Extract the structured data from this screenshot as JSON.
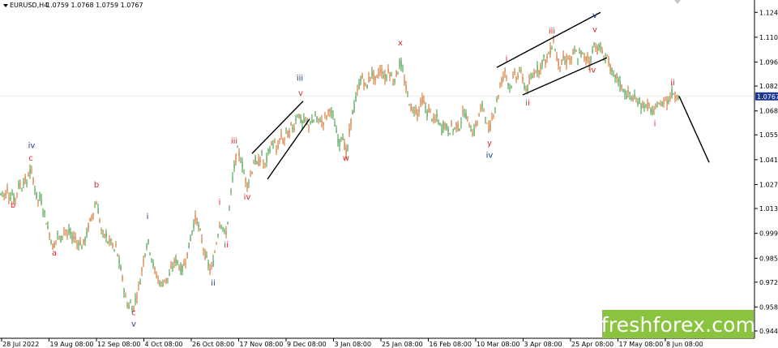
{
  "header": {
    "symbol": "EURUSD,H4",
    "ohlc": "1.0759 1.0768 1.0759 1.0767"
  },
  "brand": {
    "text": "freshforex.com",
    "bg_color": "#8ac43f"
  },
  "colors": {
    "up": "#3a9a3a",
    "down": "#d2691e",
    "label_red": "#d62728",
    "label_blue": "#1f3a93",
    "line": "#000000",
    "price_tag_bg": "#1f3a93",
    "bid_line": "#e8e8e8"
  },
  "chart_data": {
    "type": "candlestick",
    "symbol": "EURUSD",
    "timeframe": "H4",
    "ylim": [
      0.9445,
      1.1255
    ],
    "y_ticks": [
      "1.1240",
      "1.1100",
      "1.0960",
      "1.0825",
      "1.0685",
      "1.0550",
      "1.0410",
      "1.0270",
      "1.0135",
      "0.9995",
      "0.9855",
      "0.9720",
      "0.9580",
      "0.9445"
    ],
    "current_price": "1.0767",
    "x_ticks": [
      "28 Jul 2022",
      "19 Aug 08:00",
      "12 Sep 08:00",
      "4 Oct 08:00",
      "26 Oct 08:00",
      "17 Nov 08:00",
      "9 Dec 08:00",
      "3 Jan 08:00",
      "25 Jan 08:00",
      "16 Feb 08:00",
      "10 Mar 08:00",
      "3 Apr 08:00",
      "25 Apr 08:00",
      "17 May 08:00",
      "8 Jun 08:00"
    ],
    "price_path": [
      [
        0,
        1.021
      ],
      [
        3,
        1.023
      ],
      [
        6,
        1.02
      ],
      [
        9,
        1.025
      ],
      [
        12,
        1.019
      ],
      [
        15,
        1.022
      ],
      [
        18,
        1.017
      ],
      [
        21,
        1.023
      ],
      [
        24,
        1.028
      ],
      [
        27,
        1.025
      ],
      [
        30,
        1.031
      ],
      [
        33,
        1.027
      ],
      [
        35,
        1.033
      ],
      [
        38,
        1.035
      ],
      [
        41,
        1.03
      ],
      [
        44,
        1.022
      ],
      [
        47,
        1.018
      ],
      [
        50,
        1.02
      ],
      [
        53,
        1.013
      ],
      [
        56,
        1.009
      ],
      [
        59,
        1.002
      ],
      [
        62,
        0.998
      ],
      [
        65,
        0.992
      ],
      [
        68,
        0.994
      ],
      [
        71,
        0.999
      ],
      [
        74,
        0.995
      ],
      [
        77,
        0.999
      ],
      [
        80,
        1.003
      ],
      [
        83,
        0.998
      ],
      [
        86,
        1.001
      ],
      [
        89,
        0.996
      ],
      [
        92,
        0.999
      ],
      [
        95,
        0.993
      ],
      [
        98,
        0.996
      ],
      [
        101,
        0.992
      ],
      [
        104,
        0.995
      ],
      [
        107,
        0.999
      ],
      [
        110,
        1.005
      ],
      [
        113,
        1.009
      ],
      [
        116,
        1.013
      ],
      [
        119,
        1.017
      ],
      [
        122,
        1.01
      ],
      [
        125,
        1.001
      ],
      [
        128,
        0.997
      ],
      [
        131,
        0.999
      ],
      [
        134,
        0.993
      ],
      [
        137,
        0.996
      ],
      [
        140,
        0.989
      ],
      [
        143,
        0.992
      ],
      [
        146,
        0.985
      ],
      [
        149,
        0.979
      ],
      [
        152,
        0.971
      ],
      [
        155,
        0.963
      ],
      [
        158,
        0.958
      ],
      [
        161,
        0.96
      ],
      [
        164,
        0.956
      ],
      [
        167,
        0.962
      ],
      [
        170,
        0.967
      ],
      [
        173,
        0.973
      ],
      [
        176,
        0.982
      ],
      [
        179,
        0.989
      ],
      [
        182,
        0.996
      ],
      [
        185,
        0.99
      ],
      [
        188,
        0.984
      ],
      [
        191,
        0.978
      ],
      [
        194,
        0.975
      ],
      [
        197,
        0.972
      ],
      [
        200,
        0.97
      ],
      [
        203,
        0.974
      ],
      [
        206,
        0.973
      ],
      [
        209,
        0.976
      ],
      [
        212,
        0.98
      ],
      [
        215,
        0.983
      ],
      [
        218,
        0.985
      ],
      [
        221,
        0.981
      ],
      [
        224,
        0.978
      ],
      [
        227,
        0.982
      ],
      [
        230,
        0.986
      ],
      [
        233,
        0.992
      ],
      [
        236,
        0.999
      ],
      [
        239,
        1.005
      ],
      [
        242,
        1.009
      ],
      [
        245,
        1.003
      ],
      [
        248,
        0.998
      ],
      [
        251,
        0.991
      ],
      [
        254,
        0.986
      ],
      [
        257,
        0.982
      ],
      [
        260,
        0.978
      ],
      [
        263,
        0.983
      ],
      [
        266,
        0.992
      ],
      [
        269,
        1.0
      ],
      [
        272,
        1.007
      ],
      [
        275,
        1.003
      ],
      [
        278,
        0.997
      ],
      [
        281,
        1.006
      ],
      [
        284,
        1.018
      ],
      [
        287,
        1.03
      ],
      [
        290,
        1.04
      ],
      [
        293,
        1.046
      ],
      [
        296,
        1.043
      ],
      [
        299,
        1.038
      ],
      [
        302,
        1.031
      ],
      [
        305,
        1.027
      ],
      [
        308,
        1.031
      ],
      [
        311,
        1.035
      ],
      [
        314,
        1.042
      ],
      [
        317,
        1.038
      ],
      [
        320,
        1.04
      ],
      [
        323,
        1.044
      ],
      [
        326,
        1.036
      ],
      [
        329,
        1.041
      ],
      [
        332,
        1.047
      ],
      [
        335,
        1.049
      ],
      [
        338,
        1.052
      ],
      [
        341,
        1.045
      ],
      [
        344,
        1.051
      ],
      [
        347,
        1.054
      ],
      [
        350,
        1.05
      ],
      [
        353,
        1.057
      ],
      [
        356,
        1.054
      ],
      [
        359,
        1.06
      ],
      [
        362,
        1.058
      ],
      [
        365,
        1.064
      ],
      [
        368,
        1.068
      ],
      [
        371,
        1.063
      ],
      [
        374,
        1.061
      ],
      [
        377,
        1.064
      ],
      [
        380,
        1.059
      ],
      [
        383,
        1.063
      ],
      [
        386,
        1.061
      ],
      [
        389,
        1.066
      ],
      [
        392,
        1.062
      ],
      [
        395,
        1.064
      ],
      [
        398,
        1.061
      ],
      [
        401,
        1.065
      ],
      [
        404,
        1.066
      ],
      [
        407,
        1.07
      ],
      [
        410,
        1.066
      ],
      [
        413,
        1.061
      ],
      [
        416,
        1.054
      ],
      [
        419,
        1.05
      ],
      [
        422,
        1.057
      ],
      [
        425,
        1.049
      ],
      [
        428,
        1.043
      ],
      [
        431,
        1.056
      ],
      [
        434,
        1.066
      ],
      [
        437,
        1.071
      ],
      [
        440,
        1.077
      ],
      [
        443,
        1.083
      ],
      [
        446,
        1.088
      ],
      [
        449,
        1.085
      ],
      [
        452,
        1.081
      ],
      [
        455,
        1.086
      ],
      [
        458,
        1.09
      ],
      [
        461,
        1.088
      ],
      [
        464,
        1.085
      ],
      [
        467,
        1.09
      ],
      [
        470,
        1.092
      ],
      [
        473,
        1.089
      ],
      [
        476,
        1.086
      ],
      [
        479,
        1.092
      ],
      [
        482,
        1.089
      ],
      [
        485,
        1.085
      ],
      [
        488,
        1.088
      ],
      [
        491,
        1.091
      ],
      [
        494,
        1.097
      ],
      [
        497,
        1.09
      ],
      [
        500,
        1.083
      ],
      [
        503,
        1.077
      ],
      [
        506,
        1.072
      ],
      [
        509,
        1.068
      ],
      [
        512,
        1.071
      ],
      [
        515,
        1.067
      ],
      [
        518,
        1.071
      ],
      [
        521,
        1.075
      ],
      [
        524,
        1.072
      ],
      [
        527,
        1.067
      ],
      [
        530,
        1.07
      ],
      [
        533,
        1.065
      ],
      [
        536,
        1.062
      ],
      [
        539,
        1.065
      ],
      [
        542,
        1.061
      ],
      [
        545,
        1.058
      ],
      [
        548,
        1.062
      ],
      [
        551,
        1.059
      ],
      [
        554,
        1.056
      ],
      [
        557,
        1.06
      ],
      [
        560,
        1.057
      ],
      [
        563,
        1.061
      ],
      [
        566,
        1.058
      ],
      [
        569,
        1.063
      ],
      [
        572,
        1.068
      ],
      [
        575,
        1.066
      ],
      [
        578,
        1.062
      ],
      [
        581,
        1.059
      ],
      [
        584,
        1.055
      ],
      [
        587,
        1.061
      ],
      [
        590,
        1.064
      ],
      [
        593,
        1.069
      ],
      [
        596,
        1.072
      ],
      [
        599,
        1.066
      ],
      [
        602,
        1.057
      ],
      [
        605,
        1.06
      ],
      [
        608,
        1.066
      ],
      [
        611,
        1.071
      ],
      [
        614,
        1.076
      ],
      [
        617,
        1.082
      ],
      [
        620,
        1.087
      ],
      [
        623,
        1.091
      ],
      [
        626,
        1.086
      ],
      [
        629,
        1.082
      ],
      [
        632,
        1.085
      ],
      [
        635,
        1.089
      ],
      [
        638,
        1.087
      ],
      [
        641,
        1.092
      ],
      [
        644,
        1.088
      ],
      [
        647,
        1.083
      ],
      [
        650,
        1.08
      ],
      [
        653,
        1.084
      ],
      [
        656,
        1.087
      ],
      [
        659,
        1.09
      ],
      [
        662,
        1.093
      ],
      [
        665,
        1.091
      ],
      [
        668,
        1.095
      ],
      [
        671,
        1.098
      ],
      [
        674,
        1.096
      ],
      [
        677,
        1.101
      ],
      [
        680,
        1.103
      ],
      [
        683,
        1.109
      ],
      [
        686,
        1.1
      ],
      [
        689,
        1.096
      ],
      [
        692,
        1.094
      ],
      [
        695,
        1.098
      ],
      [
        698,
        1.095
      ],
      [
        701,
        1.099
      ],
      [
        704,
        1.096
      ],
      [
        707,
        1.1
      ],
      [
        710,
        1.103
      ],
      [
        713,
        1.097
      ],
      [
        716,
        1.102
      ],
      [
        719,
        1.1
      ],
      [
        722,
        1.097
      ],
      [
        725,
        1.099
      ],
      [
        728,
        1.095
      ],
      [
        731,
        1.103
      ],
      [
        734,
        1.107
      ],
      [
        737,
        1.103
      ],
      [
        740,
        1.105
      ],
      [
        743,
        1.101
      ],
      [
        746,
        1.098
      ],
      [
        749,
        1.1
      ],
      [
        752,
        1.094
      ],
      [
        755,
        1.09
      ],
      [
        758,
        1.086
      ],
      [
        761,
        1.088
      ],
      [
        764,
        1.084
      ],
      [
        767,
        1.082
      ],
      [
        770,
        1.08
      ],
      [
        773,
        1.077
      ],
      [
        776,
        1.079
      ],
      [
        779,
        1.075
      ],
      [
        782,
        1.077
      ],
      [
        785,
        1.073
      ],
      [
        788,
        1.075
      ],
      [
        791,
        1.071
      ],
      [
        794,
        1.073
      ],
      [
        797,
        1.07
      ],
      [
        800,
        1.072
      ],
      [
        803,
        1.069
      ],
      [
        806,
        1.066
      ],
      [
        809,
        1.07
      ],
      [
        812,
        1.074
      ],
      [
        815,
        1.071
      ],
      [
        818,
        1.073
      ],
      [
        821,
        1.076
      ],
      [
        824,
        1.073
      ],
      [
        827,
        1.077
      ],
      [
        830,
        1.08
      ],
      [
        833,
        1.077
      ],
      [
        836,
        1.078
      ],
      [
        838,
        1.077
      ]
    ],
    "wave_labels": [
      {
        "text": "iv",
        "x": 39,
        "price": 1.0475,
        "color": "blue"
      },
      {
        "text": "c",
        "x": 38,
        "price": 1.0405,
        "color": "red"
      },
      {
        "text": "b",
        "x": 16,
        "price": 1.014,
        "color": "red"
      },
      {
        "text": "a",
        "x": 67,
        "price": 0.987,
        "color": "red"
      },
      {
        "text": "b",
        "x": 119,
        "price": 1.0255,
        "color": "red"
      },
      {
        "text": "c",
        "x": 165,
        "price": 0.9535,
        "color": "red"
      },
      {
        "text": "v",
        "x": 165,
        "price": 0.947,
        "color": "blue"
      },
      {
        "text": "i",
        "x": 182,
        "price": 1.0075,
        "color": "blue"
      },
      {
        "text": "ii",
        "x": 263,
        "price": 0.97,
        "color": "blue"
      },
      {
        "text": "i",
        "x": 271,
        "price": 1.0155,
        "color": "red"
      },
      {
        "text": "ii",
        "x": 279,
        "price": 0.9915,
        "color": "red"
      },
      {
        "text": "iii",
        "x": 289,
        "price": 1.05,
        "color": "red"
      },
      {
        "text": "iv",
        "x": 305,
        "price": 1.0185,
        "color": "red"
      },
      {
        "text": "iii",
        "x": 370,
        "price": 1.0855,
        "color": "blue"
      },
      {
        "text": "v",
        "x": 371,
        "price": 1.077,
        "color": "red"
      },
      {
        "text": "w",
        "x": 427,
        "price": 1.0405,
        "color": "red"
      },
      {
        "text": "x",
        "x": 494,
        "price": 1.1055,
        "color": "red"
      },
      {
        "text": "y",
        "x": 604,
        "price": 1.049,
        "color": "red"
      },
      {
        "text": "iv",
        "x": 604,
        "price": 1.042,
        "color": "blue"
      },
      {
        "text": "i",
        "x": 625,
        "price": 1.0965,
        "color": "red"
      },
      {
        "text": "ii",
        "x": 651,
        "price": 1.0715,
        "color": "red"
      },
      {
        "text": "iii",
        "x": 681,
        "price": 1.112,
        "color": "red"
      },
      {
        "text": "v",
        "x": 734,
        "price": 1.121,
        "color": "blue"
      },
      {
        "text": "v",
        "x": 734,
        "price": 1.113,
        "color": "red"
      },
      {
        "text": "iv",
        "x": 731,
        "price": 1.09,
        "color": "red"
      },
      {
        "text": "i",
        "x": 808,
        "price": 1.06,
        "color": "red"
      },
      {
        "text": "ii",
        "x": 830,
        "price": 1.083,
        "color": "red"
      }
    ],
    "trend_lines": [
      {
        "from": [
          311,
          1.0445
        ],
        "to": [
          374,
          1.074
        ]
      },
      {
        "from": [
          330,
          1.03
        ],
        "to": [
          382,
          1.064
        ]
      },
      {
        "from": [
          613,
          1.093
        ],
        "to": [
          741,
          1.124
        ]
      },
      {
        "from": [
          645,
          1.0775
        ],
        "to": [
          749,
          1.0985
        ]
      },
      {
        "from": [
          838,
          1.0768
        ],
        "to": [
          875,
          1.0395
        ]
      }
    ]
  }
}
